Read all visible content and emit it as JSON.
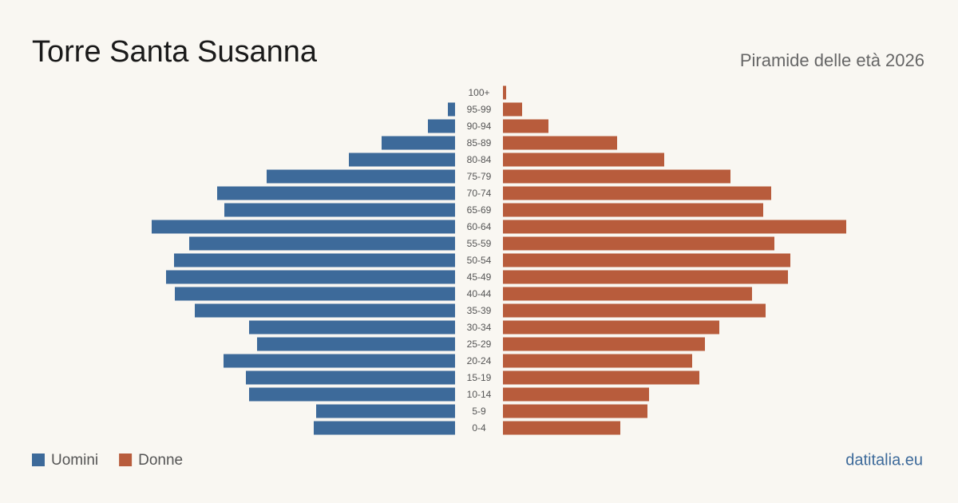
{
  "chart_data": {
    "type": "pyramid",
    "title": "Torre Santa Susanna",
    "subtitle": "Piramide delle età 2026",
    "source": "datitalia.eu",
    "categories": [
      "100+",
      "95-99",
      "90-94",
      "85-89",
      "80-84",
      "75-79",
      "70-74",
      "65-69",
      "60-64",
      "55-59",
      "50-54",
      "45-49",
      "40-44",
      "35-39",
      "30-34",
      "25-29",
      "20-24",
      "15-19",
      "10-14",
      "5-9",
      "0-4"
    ],
    "series": [
      {
        "name": "Uomini",
        "color": "#3d6a9a",
        "values": [
          0,
          9,
          34,
          92,
          133,
          236,
          298,
          289,
          380,
          333,
          352,
          362,
          351,
          326,
          258,
          248,
          290,
          262,
          258,
          174,
          177
        ]
      },
      {
        "name": "Donne",
        "color": "#b85c3c",
        "values": [
          4,
          24,
          57,
          143,
          202,
          285,
          336,
          326,
          430,
          340,
          360,
          357,
          312,
          329,
          271,
          253,
          237,
          246,
          183,
          181,
          147
        ]
      }
    ],
    "xlim": [
      0,
      440
    ]
  }
}
